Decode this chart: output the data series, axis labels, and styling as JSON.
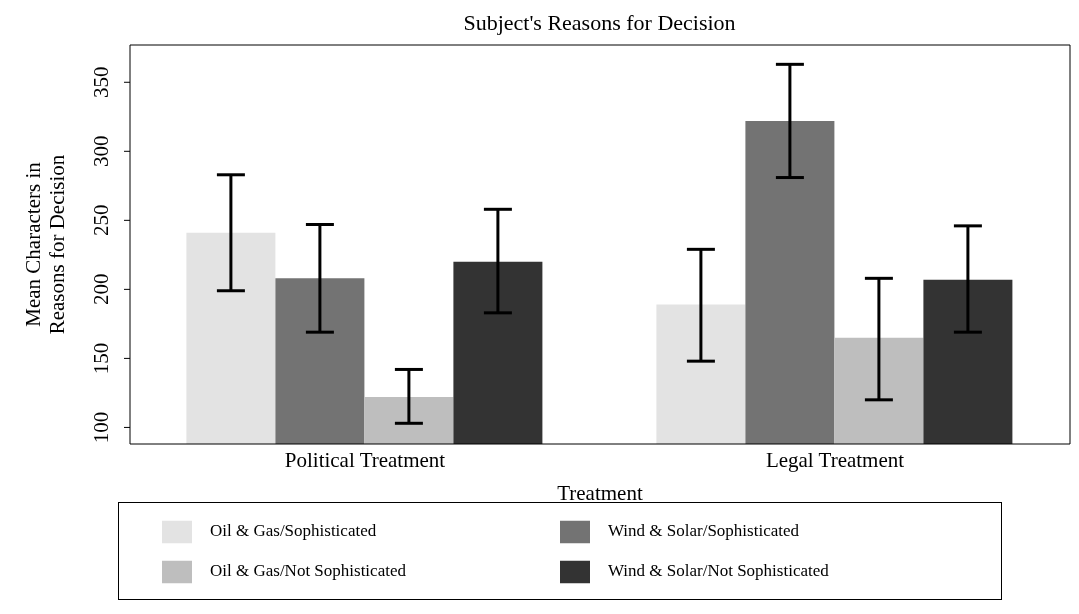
{
  "chart_data": {
    "type": "bar",
    "title": "Subject's Reasons for Decision",
    "xlabel": "Treatment",
    "ylabel": "Mean Characters in Reasons for Decision",
    "categories": [
      "Political Treatment",
      "Legal Treatment"
    ],
    "series": [
      {
        "name": "Oil & Gas/Sophisticated",
        "color": "#e3e3e3",
        "values": [
          241,
          189
        ],
        "errors": [
          [
            199,
            283
          ],
          [
            148,
            229
          ]
        ]
      },
      {
        "name": "Wind & Solar/Sophisticated",
        "color": "#737373",
        "values": [
          208,
          322
        ],
        "errors": [
          [
            169,
            247
          ],
          [
            281,
            363
          ]
        ]
      },
      {
        "name": "Oil & Gas/Not Sophisticated",
        "color": "#bebebe",
        "values": [
          122,
          165
        ],
        "errors": [
          [
            103,
            142
          ],
          [
            120,
            208
          ]
        ]
      },
      {
        "name": "Wind & Solar/Not Sophisticated",
        "color": "#333333",
        "values": [
          220,
          207
        ],
        "errors": [
          [
            183,
            258
          ],
          [
            169,
            246
          ]
        ]
      }
    ],
    "ylim": [
      88,
      377
    ],
    "yticks": [
      100,
      150,
      200,
      250,
      300,
      350
    ],
    "grid": false,
    "legend": "bottom"
  }
}
